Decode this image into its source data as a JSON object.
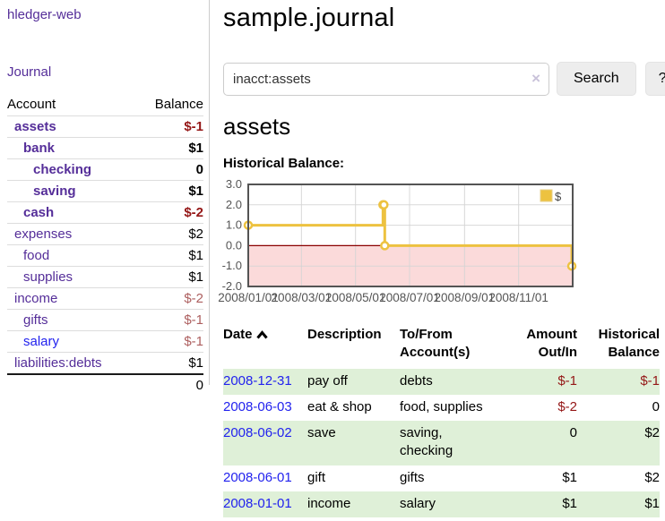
{
  "colors": {
    "purple": "#552e99",
    "blue": "#2222ee",
    "neg_strong": "#941616",
    "neg_light": "#ad5f5f",
    "row_green": "#dff0d8",
    "chart_yellow": "#edc240",
    "chart_pink": "#fbdada",
    "zero_red": "#8b0000",
    "axis_gray": "#545454",
    "button_bg": "#ededed"
  },
  "sidebar": {
    "app_title": "hledger-web",
    "journal_link": "Journal",
    "accounts": {
      "header_account": "Account",
      "header_balance": "Balance",
      "rows": [
        {
          "name": "assets",
          "balance": "$-1"
        },
        {
          "name": "bank",
          "balance": "$1"
        },
        {
          "name": "checking",
          "balance": "0"
        },
        {
          "name": "saving",
          "balance": "$1"
        },
        {
          "name": "cash",
          "balance": "$-2"
        },
        {
          "name": "expenses",
          "balance": "$2"
        },
        {
          "name": "food",
          "balance": "$1"
        },
        {
          "name": "supplies",
          "balance": "$1"
        },
        {
          "name": "income",
          "balance": "$-2"
        },
        {
          "name": "gifts",
          "balance": "$-1"
        },
        {
          "name": "salary",
          "balance": "$-1"
        },
        {
          "name": "liabilities:debts",
          "balance": "$1"
        }
      ],
      "total": "0"
    }
  },
  "main": {
    "title": "sample.journal",
    "search": {
      "value": "inacct:assets",
      "clear_icon": "×",
      "button_label": "Search",
      "help_label": "?"
    },
    "account_heading": "assets",
    "chart_heading": "Historical Balance:"
  },
  "chart_data": {
    "type": "line",
    "step": true,
    "title": "Historical Balance",
    "series": [
      {
        "name": "$",
        "color": "#edc240",
        "points": [
          [
            "2008-01-01",
            1
          ],
          [
            "2008-06-01",
            2
          ],
          [
            "2008-06-02",
            2
          ],
          [
            "2008-06-03",
            0
          ],
          [
            "2008-12-31",
            -1
          ]
        ]
      }
    ],
    "xlim": [
      "2008-01-01",
      "2009-01-01"
    ],
    "ylim": [
      -2,
      3
    ],
    "yticks": [
      3.0,
      2.0,
      1.0,
      0.0,
      -1.0,
      -2.0
    ],
    "xticks": [
      "2008/01/01",
      "2008/03/01",
      "2008/05/01",
      "2008/07/01",
      "2008/09/01",
      "2008/11/01"
    ],
    "grid": true,
    "legend_position": "top-right",
    "negative_fill": "#fbdada",
    "zero_line_color": "#8b0000"
  },
  "register": {
    "headers": {
      "date": "Date",
      "description": "Description",
      "account": "To/From Account(s)",
      "amount": "Amount Out/In",
      "balance": "Historical Balance"
    },
    "rows": [
      {
        "date": "2008-12-31",
        "description": "pay off",
        "account": "debts",
        "amount": "$-1",
        "balance": "$-1"
      },
      {
        "date": "2008-06-03",
        "description": "eat & shop",
        "account": "food, supplies",
        "amount": "$-2",
        "balance": "0"
      },
      {
        "date": "2008-06-02",
        "description": "save",
        "account": "saving, checking",
        "amount": "0",
        "balance": "$2"
      },
      {
        "date": "2008-06-01",
        "description": "gift",
        "account": "gifts",
        "amount": "$1",
        "balance": "$2"
      },
      {
        "date": "2008-01-01",
        "description": "income",
        "account": "salary",
        "amount": "$1",
        "balance": "$1"
      }
    ]
  }
}
